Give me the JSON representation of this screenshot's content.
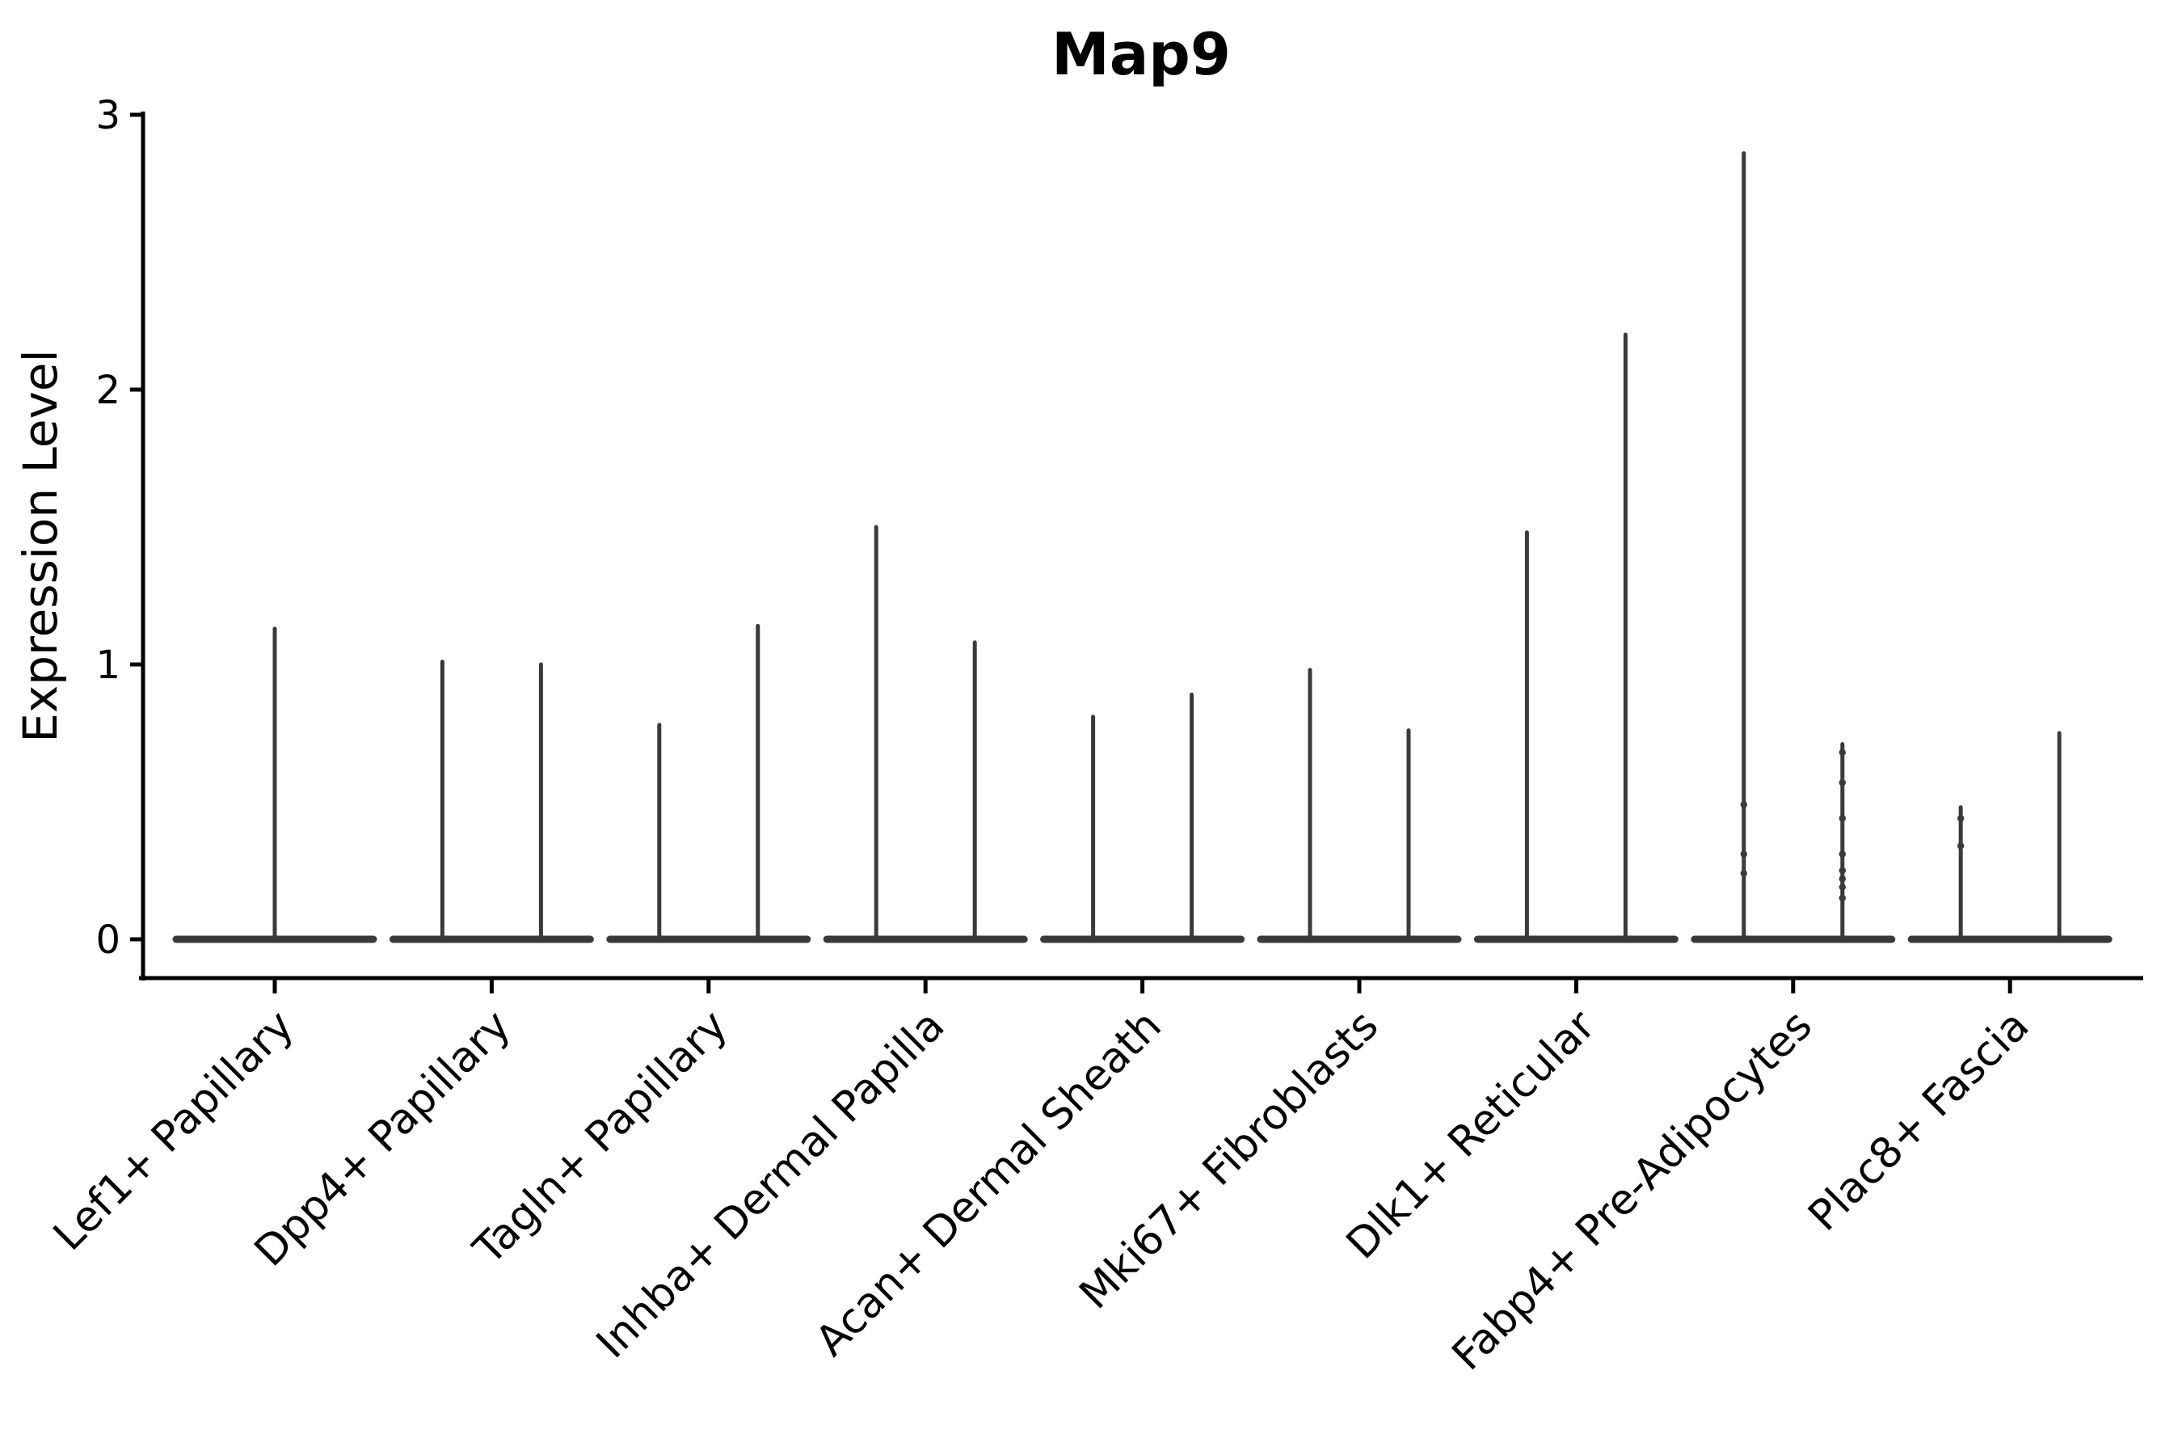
{
  "chart_data": {
    "type": "violin",
    "title": "Map9",
    "ylabel": "Expression Level",
    "xlabel": "",
    "yticks": [
      0,
      1,
      2,
      3
    ],
    "ylim": [
      -0.15,
      3.0
    ],
    "grid": false,
    "legend": null,
    "ink_color": "#3a3a3a",
    "axis_color": "#000000",
    "categories": [
      "Lef1+ Papillary",
      "Dpp4+ Papillary",
      "Tagln+ Papillary",
      "Inhba+ Dermal Papilla",
      "Acan+ Dermal Sheath",
      "Mki67+ Fibroblasts",
      "Dlk1+ Reticular",
      "Fabp4+ Pre-Adipocytes",
      "Plac8+ Fascia"
    ],
    "violins": [
      [
        {
          "max": 1.13,
          "points": []
        }
      ],
      [
        {
          "max": 1.01,
          "points": []
        },
        {
          "max": 1.0,
          "points": []
        }
      ],
      [
        {
          "max": 0.78,
          "points": []
        },
        {
          "max": 1.14,
          "points": []
        }
      ],
      [
        {
          "max": 1.5,
          "points": []
        },
        {
          "max": 1.08,
          "points": []
        }
      ],
      [
        {
          "max": 0.81,
          "points": []
        },
        {
          "max": 0.89,
          "points": []
        }
      ],
      [
        {
          "max": 0.98,
          "points": []
        },
        {
          "max": 0.76,
          "points": []
        }
      ],
      [
        {
          "max": 1.48,
          "points": []
        },
        {
          "max": 2.2,
          "points": []
        }
      ],
      [
        {
          "max": 2.86,
          "points": [
            0.49,
            0.31,
            0.24
          ]
        },
        {
          "max": 0.71,
          "points": [
            0.68,
            0.57,
            0.44,
            0.31,
            0.25,
            0.22,
            0.19,
            0.15
          ]
        }
      ],
      [
        {
          "max": 0.48,
          "points": [
            0.44,
            0.34
          ]
        },
        {
          "max": 0.75,
          "points": []
        }
      ]
    ]
  }
}
